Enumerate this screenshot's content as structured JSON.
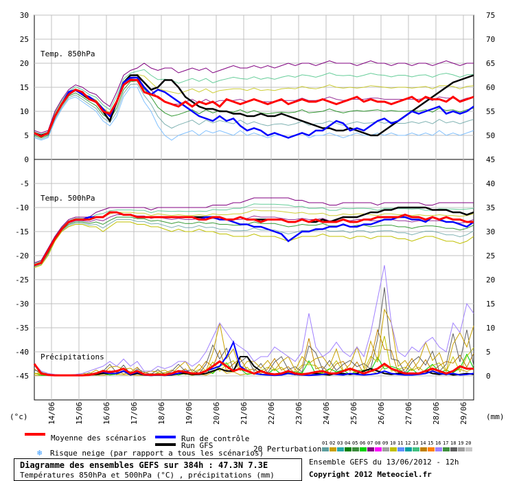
{
  "chart_data": {
    "type": "line",
    "title": "Diagramme des ensembles GEFS sur 384h : 47.3N 7.3E",
    "subtitle": "Températures 850hPa et 500hPa (°C) , précipitations (mm)",
    "left_axis_unit": "(°c)",
    "right_axis_unit": "(mm)",
    "x_dates": [
      "14/06",
      "15/06",
      "16/06",
      "17/06",
      "18/06",
      "19/06",
      "20/06",
      "21/06",
      "22/06",
      "23/06",
      "24/06",
      "25/06",
      "26/06",
      "27/06",
      "28/06",
      "29/06"
    ],
    "left_ticks": [
      30,
      25,
      20,
      15,
      10,
      5,
      0,
      -5,
      -10,
      -15,
      -20,
      -25,
      -30,
      -35,
      -40,
      -45
    ],
    "right_ticks": [
      75,
      70,
      65,
      60,
      55,
      50,
      45,
      40,
      35,
      30,
      25,
      20,
      15,
      10,
      5,
      0
    ],
    "panels": [
      {
        "label": "Temp. 850hPa"
      },
      {
        "label": "Temp. 500hPa"
      },
      {
        "label": "Précipitations"
      }
    ],
    "t850": {
      "mean": [
        5.5,
        4.8,
        5.5,
        9,
        11.5,
        13.5,
        14.5,
        14,
        12.5,
        12,
        10,
        9.5,
        12,
        15.5,
        16.5,
        16.5,
        14,
        13.5,
        13,
        12,
        11.5,
        11,
        12,
        11,
        12,
        11.5,
        12,
        11,
        12.5,
        12,
        11.5,
        12,
        12.5,
        12,
        11.5,
        12,
        12.5,
        11.5,
        12,
        12.5,
        12,
        12,
        12.5,
        12,
        11.5,
        12,
        12.5,
        13,
        12,
        12.5,
        12,
        12,
        11.5,
        12,
        12.5,
        13,
        12,
        13,
        12.5,
        12.5,
        12,
        13,
        12,
        12.5,
        13
      ],
      "control": [
        5.5,
        4.8,
        5.5,
        9,
        11.5,
        14,
        14.5,
        13.5,
        13,
        12,
        10.5,
        9,
        12,
        16,
        17,
        17,
        15,
        13.5,
        14.5,
        14,
        13,
        12,
        11,
        10,
        9,
        8.5,
        8,
        9,
        8,
        8.5,
        7,
        6,
        6.5,
        6,
        5,
        5.5,
        5,
        4.5,
        5,
        5.5,
        5,
        6,
        6,
        7,
        8,
        7.5,
        6,
        6.5,
        6,
        7,
        8,
        8.5,
        7.5,
        8,
        9,
        10,
        9.5,
        10,
        10.5,
        11,
        9.5,
        10,
        9.5,
        10,
        11
      ],
      "gfs": [
        5.5,
        5,
        5.5,
        9,
        11.5,
        13.5,
        14.5,
        13.5,
        12.5,
        12,
        10,
        8,
        12,
        16,
        17.5,
        17.5,
        16,
        14.5,
        15,
        16.5,
        16.5,
        15,
        13,
        12,
        11,
        10.5,
        10.5,
        10,
        10,
        9.5,
        9.5,
        9,
        9,
        9.5,
        9,
        9,
        9.5,
        9,
        8.5,
        8,
        7.5,
        7,
        6.5,
        6.5,
        6,
        6,
        6.5,
        6,
        5.5,
        5,
        5,
        6,
        7,
        8,
        9,
        10,
        11,
        12,
        13,
        14,
        15,
        16,
        16.5,
        17,
        17.5
      ],
      "min": [
        4.5,
        4,
        4.5,
        8,
        10.5,
        12.5,
        13,
        12,
        11,
        10,
        8,
        7,
        9,
        13,
        15,
        15,
        12,
        10,
        7,
        5,
        4,
        5,
        5.5,
        6,
        5,
        6,
        5.5,
        6,
        5.5,
        5,
        6,
        5,
        5.5,
        5,
        4.5,
        5,
        5,
        4.5,
        5,
        5.5,
        4.5,
        5,
        5,
        5.5,
        5,
        4.5,
        5,
        5.5,
        5,
        5,
        5.5,
        5,
        5.5,
        5,
        5,
        5.5,
        5,
        5.5,
        5,
        6,
        5,
        5.5,
        5,
        5.5,
        6
      ],
      "max": [
        6,
        5.5,
        6,
        10,
        12.5,
        14.5,
        15.5,
        15,
        14,
        13.5,
        12,
        11,
        14,
        17.5,
        18.5,
        19,
        20,
        19,
        18.5,
        19,
        19,
        18,
        18.5,
        19,
        18.5,
        19,
        18,
        18.5,
        19,
        19.5,
        19,
        19,
        19.5,
        19,
        19.5,
        19,
        19.5,
        20,
        19.5,
        20,
        20,
        19.5,
        20,
        20.5,
        20,
        20,
        20,
        19.5,
        20,
        20.5,
        20,
        20,
        19.5,
        20,
        20,
        19.5,
        20,
        20,
        19.5,
        20,
        20.5,
        20,
        19.5,
        20,
        20
      ]
    },
    "t500": {
      "mean": [
        -22,
        -21.5,
        -19,
        -16.5,
        -14.5,
        -13,
        -12.5,
        -12.5,
        -12.5,
        -12,
        -12,
        -11,
        -11,
        -11.5,
        -11.5,
        -12,
        -12,
        -12,
        -12,
        -12,
        -12,
        -12,
        -12,
        -12,
        -12.5,
        -12.5,
        -12,
        -12,
        -12.5,
        -12.5,
        -12,
        -12.5,
        -12.5,
        -13,
        -12.5,
        -12.5,
        -12.5,
        -13,
        -13,
        -12.5,
        -13,
        -12.5,
        -13,
        -13,
        -13,
        -12.5,
        -13,
        -13,
        -12.5,
        -12.5,
        -12,
        -12,
        -12,
        -12,
        -11.5,
        -12,
        -12,
        -12.5,
        -12,
        -12.5,
        -12,
        -12.5,
        -12.5,
        -13,
        -13
      ],
      "control": [
        -22,
        -21.5,
        -19,
        -16.5,
        -14.5,
        -13,
        -12.5,
        -12.5,
        -12,
        -12,
        -12,
        -11,
        -11,
        -11.5,
        -11.5,
        -12,
        -12,
        -12,
        -12,
        -12,
        -12,
        -12,
        -12,
        -12,
        -12.5,
        -12,
        -12,
        -12.5,
        -12.5,
        -13,
        -13.5,
        -13.5,
        -14,
        -14,
        -14.5,
        -15,
        -15.5,
        -17,
        -16,
        -15,
        -15,
        -14.5,
        -14.5,
        -14,
        -14,
        -13.5,
        -14,
        -14,
        -13.5,
        -13.5,
        -13,
        -12.5,
        -12.5,
        -12,
        -12,
        -12.5,
        -12.5,
        -13,
        -12,
        -12.5,
        -13,
        -13,
        -13.5,
        -14,
        -13
      ],
      "gfs": [
        -22,
        -21.5,
        -19,
        -16.5,
        -14.5,
        -13,
        -12.5,
        -12.5,
        -12.5,
        -12,
        -12,
        -11,
        -11,
        -11.5,
        -11.5,
        -12,
        -12,
        -12,
        -12,
        -12,
        -12,
        -12,
        -12,
        -12,
        -12,
        -12,
        -12,
        -12,
        -12.5,
        -12.5,
        -12,
        -12.5,
        -12.5,
        -12.5,
        -12.5,
        -12.5,
        -12.5,
        -13,
        -13,
        -12.5,
        -13,
        -13,
        -12.5,
        -13,
        -12.5,
        -12,
        -12,
        -12,
        -11.5,
        -11,
        -11,
        -10.5,
        -10.5,
        -10,
        -10,
        -10,
        -10,
        -10,
        -10.5,
        -10.5,
        -10.5,
        -11,
        -11,
        -11.5,
        -11
      ],
      "min": [
        -22.5,
        -22,
        -20,
        -17,
        -15,
        -14,
        -13.5,
        -13.5,
        -14,
        -14,
        -15,
        -14,
        -13,
        -13,
        -13,
        -13.5,
        -13.5,
        -14,
        -14,
        -14.5,
        -15,
        -14.5,
        -15,
        -15,
        -14.5,
        -15,
        -15,
        -15.5,
        -15.5,
        -16,
        -16,
        -16,
        -15.5,
        -16,
        -16,
        -16,
        -16.5,
        -17,
        -16.5,
        -16,
        -16,
        -16,
        -15.5,
        -16,
        -16,
        -16,
        -16.5,
        -16,
        -16,
        -16.5,
        -16,
        -16,
        -16,
        -16.5,
        -16.5,
        -17,
        -16.5,
        -16,
        -16,
        -16.5,
        -17,
        -17,
        -17.5,
        -17,
        -16
      ],
      "max": [
        -21.5,
        -21,
        -18.5,
        -16,
        -14,
        -12.5,
        -12,
        -12,
        -12,
        -11,
        -10.5,
        -10,
        -10,
        -10,
        -10,
        -10,
        -10,
        -10.5,
        -10,
        -10,
        -10,
        -10,
        -10,
        -10,
        -10,
        -10,
        -9.5,
        -9.5,
        -9.5,
        -9,
        -9,
        -8.5,
        -8,
        -8,
        -8,
        -8,
        -8,
        -8,
        -8.5,
        -8.5,
        -9,
        -9,
        -9,
        -9.5,
        -9.5,
        -9,
        -9,
        -9,
        -9,
        -9,
        -9.5,
        -9,
        -9,
        -9,
        -9,
        -9,
        -9,
        -9.5,
        -9.5,
        -9,
        -9,
        -9,
        -9,
        -9,
        -9
      ]
    },
    "precip": {
      "mean": [
        2.5,
        0.5,
        0.2,
        0.1,
        0.1,
        0.1,
        0.1,
        0.1,
        0.2,
        0.5,
        1,
        0.8,
        1,
        1.5,
        0.5,
        1,
        0.3,
        0.2,
        0.3,
        0.2,
        0.5,
        1,
        0.8,
        0.5,
        0.5,
        1,
        2,
        3,
        2,
        1,
        1.5,
        1,
        0.5,
        1,
        0.5,
        0.3,
        0.5,
        1,
        0.5,
        0.3,
        0.5,
        0.8,
        1,
        0.5,
        0.5,
        1,
        1.5,
        1,
        0.5,
        1,
        1.5,
        2.5,
        1.5,
        1,
        0.5,
        0.5,
        0.5,
        1,
        1.5,
        1,
        0.5,
        1,
        2,
        1.5,
        1.5
      ],
      "control": [
        2.5,
        0.5,
        0.2,
        0.1,
        0.1,
        0.1,
        0.1,
        0.1,
        0.2,
        0.5,
        0.8,
        0.5,
        0.5,
        1,
        0.3,
        0.8,
        0.2,
        0.1,
        0.2,
        0.1,
        0.3,
        0.5,
        1,
        0.5,
        0.5,
        1,
        1.5,
        2,
        4,
        7,
        2,
        1,
        0.5,
        0.3,
        0.2,
        0.1,
        0.2,
        0.5,
        0.3,
        0.2,
        0.1,
        0.2,
        0.3,
        0.5,
        0.3,
        0.2,
        0.5,
        0.3,
        0.2,
        0.3,
        0.5,
        1,
        0.5,
        0.3,
        0.2,
        0.2,
        0.3,
        0.5,
        1,
        0.5,
        0.3,
        0.5,
        0.2,
        0.3,
        0.5
      ],
      "gfs": [
        2.5,
        0.5,
        0.2,
        0.1,
        0.1,
        0.1,
        0.1,
        0.1,
        0.2,
        0.3,
        0.5,
        0.5,
        0.5,
        1,
        0.2,
        0.5,
        0.2,
        0.1,
        0.2,
        0.1,
        0.2,
        0.5,
        0.5,
        0.3,
        0.3,
        0.5,
        1,
        1.5,
        1,
        1,
        4,
        4,
        2,
        1,
        0.5,
        0.3,
        0.5,
        0.5,
        0.3,
        0.2,
        0.5,
        0.5,
        0.3,
        0.2,
        0.5,
        0.5,
        0.3,
        0.5,
        1,
        1.5,
        1,
        0.5,
        0.3,
        0.5,
        0.5,
        0.3,
        0.5,
        1,
        0.5,
        0.3,
        0.5,
        0.2,
        0.3,
        0.5,
        0.3
      ],
      "max": [
        2.5,
        1,
        0.5,
        0.3,
        0.2,
        0.2,
        0.3,
        0.5,
        1,
        1.5,
        2,
        3,
        2,
        3.5,
        2,
        3,
        1,
        1,
        2,
        1.5,
        2,
        3,
        3,
        2,
        3,
        5,
        8,
        11,
        9,
        7,
        6,
        5,
        3,
        4,
        4,
        6,
        5,
        4,
        3,
        5,
        13,
        6,
        4,
        5,
        7,
        5,
        4,
        6,
        4,
        9,
        16,
        23,
        11,
        5,
        4,
        6,
        5,
        7,
        8,
        6,
        5,
        11,
        9,
        15,
        13
      ]
    },
    "legend": {
      "mean": "Moyenne des scénarios",
      "control": "Run de contrôle",
      "gfs": "Run GFS",
      "snow": "Risque neige (par rapport a tous les scénarios)",
      "perturbations": "20 Perturbations",
      "pert_labels": [
        "01",
        "02",
        "03",
        "04",
        "05",
        "06",
        "07",
        "08",
        "09",
        "10",
        "11",
        "12",
        "13",
        "14",
        "15",
        "16",
        "17",
        "18",
        "19",
        "20"
      ],
      "pert_colors": [
        "#5f9f9f",
        "#c8a000",
        "#2aa8a8",
        "#008000",
        "#3c8c3c",
        "#00d000",
        "#800080",
        "#ff00ff",
        "#a0a0a0",
        "#c0c000",
        "#6090ff",
        "#00a0a0",
        "#40c080",
        "#c08000",
        "#ff8000",
        "#a080ff",
        "#409040",
        "#606060",
        "#a0a0a0",
        "#c8c8c8"
      ]
    },
    "footer": {
      "ensemble": "Ensemble GEFS du 13/06/2012 - 12h",
      "copyright": "Copyright 2012 Meteociel.fr"
    },
    "colors": {
      "mean": "#ff0000",
      "control": "#0000ff",
      "gfs": "#000000",
      "grid": "#c0c0c0"
    }
  }
}
